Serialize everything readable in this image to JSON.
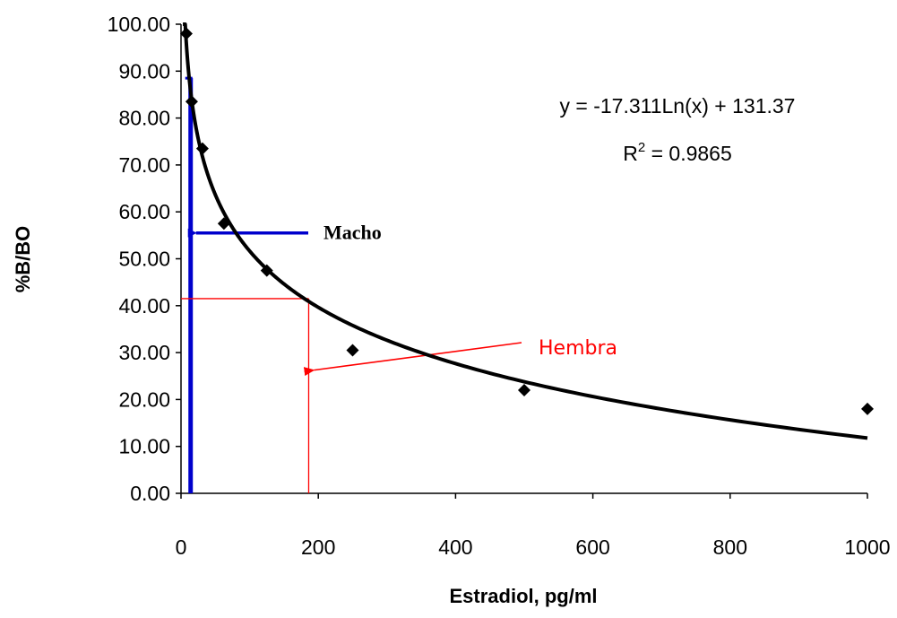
{
  "chart_data": {
    "type": "scatter",
    "xlabel": "Estradiol, pg/ml",
    "ylabel": "%B/BO",
    "xlim": [
      0,
      1000
    ],
    "ylim": [
      0,
      100
    ],
    "x_ticks": [
      "0",
      "200",
      "400",
      "600",
      "800",
      "1000"
    ],
    "y_ticks": [
      "0.00",
      "10.00",
      "20.00",
      "30.00",
      "40.00",
      "50.00",
      "60.00",
      "70.00",
      "80.00",
      "90.00",
      "100.00"
    ],
    "grid": false,
    "points": [
      {
        "x": 7.8,
        "y": 98.0
      },
      {
        "x": 15.6,
        "y": 83.5
      },
      {
        "x": 31.25,
        "y": 73.5
      },
      {
        "x": 62.5,
        "y": 57.5
      },
      {
        "x": 125,
        "y": 47.5
      },
      {
        "x": 250,
        "y": 30.5
      },
      {
        "x": 500,
        "y": 22.0
      },
      {
        "x": 1000,
        "y": 18.0
      }
    ],
    "trendline": {
      "equation": "y = -17.311Ln(x) + 131.37",
      "r2_label": "R",
      "r2_sup": "2",
      "r2_value": " = 0.9865",
      "a": -17.311,
      "b": 131.37,
      "x_range": [
        2.7,
        1000
      ]
    },
    "annotations": {
      "macho": {
        "label": "Macho",
        "x": 14,
        "y": 55.5,
        "line_top": 88.5,
        "color": "#0000cc"
      },
      "hembra": {
        "label": "Hembra",
        "x": 186,
        "y": 41.5,
        "arrow_y": 25.5,
        "color": "#ff0000"
      }
    },
    "marker_color": "#000000",
    "line_color": "#000000"
  }
}
